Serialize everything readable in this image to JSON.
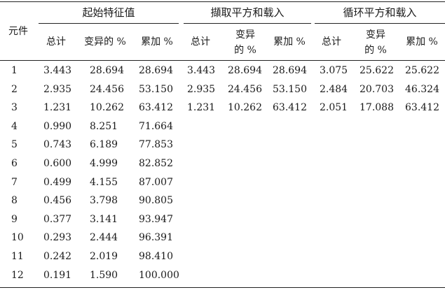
{
  "table": {
    "row_header": "元件",
    "groups": [
      {
        "title": "起始特征值",
        "cols": [
          "总计",
          "变异的 %",
          "累加 %"
        ]
      },
      {
        "title": "擷取平方和载入",
        "cols": [
          "总计",
          "变异\n的 %",
          "累加 %"
        ]
      },
      {
        "title": "循环平方和载入",
        "cols": [
          "总计",
          "变异\n的 %",
          "累加 %"
        ]
      }
    ],
    "rows": [
      [
        "1",
        "3.443",
        "28.694",
        "28.694",
        "3.443",
        "28.694",
        "28.694",
        "3.075",
        "25.622",
        "25.622"
      ],
      [
        "2",
        "2.935",
        "24.456",
        "53.150",
        "2.935",
        "24.456",
        "53.150",
        "2.484",
        "20.703",
        "46.324"
      ],
      [
        "3",
        "1.231",
        "10.262",
        "63.412",
        "1.231",
        "10.262",
        "63.412",
        "2.051",
        "17.088",
        "63.412"
      ],
      [
        "4",
        "0.990",
        "8.251",
        "71.664",
        "",
        "",
        "",
        "",
        "",
        ""
      ],
      [
        "5",
        "0.743",
        "6.189",
        "77.853",
        "",
        "",
        "",
        "",
        "",
        ""
      ],
      [
        "6",
        "0.600",
        "4.999",
        "82.852",
        "",
        "",
        "",
        "",
        "",
        ""
      ],
      [
        "7",
        "0.499",
        "4.155",
        "87.007",
        "",
        "",
        "",
        "",
        "",
        ""
      ],
      [
        "8",
        "0.456",
        "3.798",
        "90.805",
        "",
        "",
        "",
        "",
        "",
        ""
      ],
      [
        "9",
        "0.377",
        "3.141",
        "93.947",
        "",
        "",
        "",
        "",
        "",
        ""
      ],
      [
        "10",
        "0.293",
        "2.444",
        "96.391",
        "",
        "",
        "",
        "",
        "",
        ""
      ],
      [
        "11",
        "0.242",
        "2.019",
        "98.410",
        "",
        "",
        "",
        "",
        "",
        ""
      ],
      [
        "12",
        "0.191",
        "1.590",
        "100.000",
        "",
        "",
        "",
        "",
        "",
        ""
      ]
    ]
  }
}
